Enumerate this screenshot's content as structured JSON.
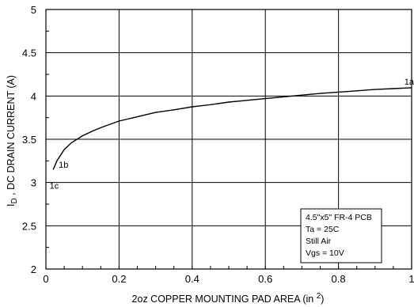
{
  "chart_data": {
    "type": "line",
    "title": "",
    "xlabel": "2oz COPPER MOUNTING PAD AREA (in ",
    "xlabel_sup": "2",
    "xlabel_end": ")",
    "ylabel_main": "I",
    "ylabel_sub": "D",
    "ylabel_rest": " , DC DRAIN CURRENT (A)",
    "xlim": [
      0,
      1
    ],
    "ylim": [
      2,
      5
    ],
    "grid": true,
    "x_ticks": [
      "0",
      "0.2",
      "0.4",
      "0.6",
      "0.8",
      "1"
    ],
    "y_ticks": [
      "2",
      "2.5",
      "3",
      "3.5",
      "4",
      "4.5",
      "5"
    ],
    "series": [
      {
        "x": [
          0.02,
          0.03,
          0.05,
          0.07,
          0.1,
          0.13,
          0.16,
          0.2,
          0.25,
          0.3,
          0.35,
          0.4,
          0.45,
          0.5,
          0.55,
          0.6,
          0.65,
          0.7,
          0.75,
          0.8,
          0.85,
          0.9,
          0.95,
          1.0
        ],
        "y": [
          3.15,
          3.25,
          3.38,
          3.46,
          3.54,
          3.6,
          3.65,
          3.71,
          3.76,
          3.81,
          3.84,
          3.875,
          3.9,
          3.93,
          3.95,
          3.97,
          3.99,
          4.01,
          4.03,
          4.045,
          4.06,
          4.075,
          4.085,
          4.095
        ]
      }
    ],
    "annotations": [
      {
        "text": "1a",
        "x": 0.98,
        "y": 4.13
      },
      {
        "text": "1b",
        "x": 0.035,
        "y": 3.17
      },
      {
        "text": "1c",
        "x": 0.01,
        "y": 2.93
      }
    ],
    "legend_box": {
      "placement": "bottom-right",
      "lines": [
        "4.5\"x5\" FR-4 PCB",
        "Ta = 25C",
        "Still Air",
        "Vgs = 10V"
      ]
    }
  }
}
